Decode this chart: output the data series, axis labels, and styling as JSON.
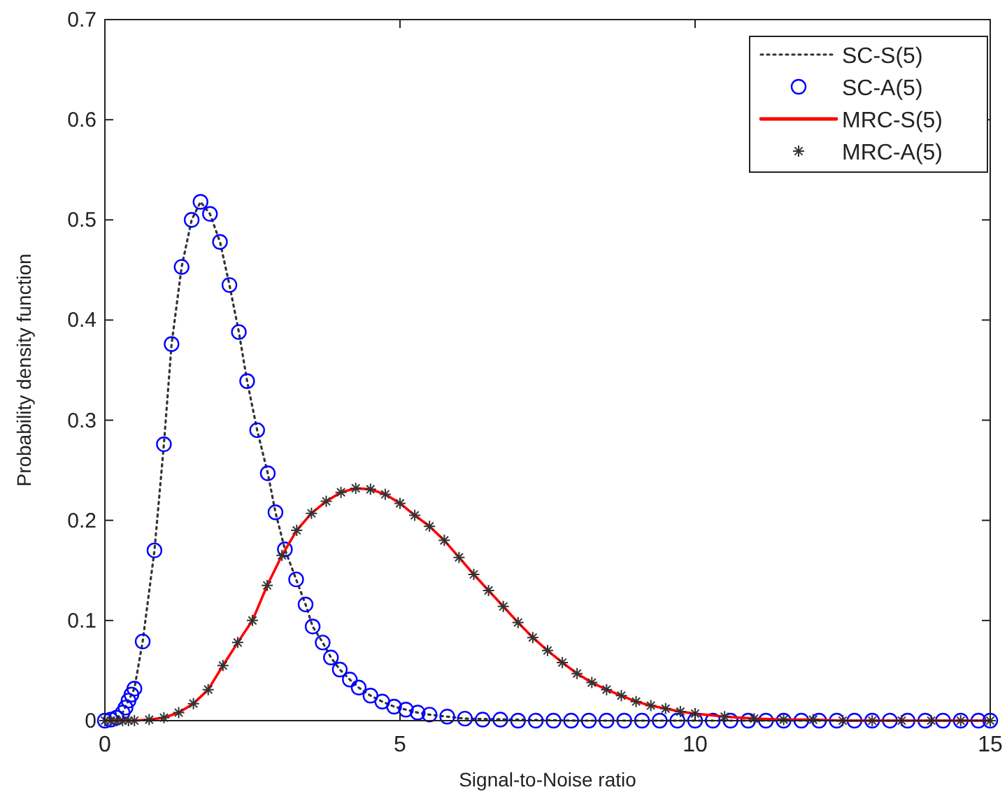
{
  "chart_data": {
    "type": "line",
    "xlabel": "Signal-to-Noise ratio",
    "ylabel": "Probability density function",
    "xlim": [
      0,
      15
    ],
    "ylim": [
      0,
      0.7
    ],
    "xticks": [
      0,
      5,
      10,
      15
    ],
    "yticks": [
      0,
      0.1,
      0.2,
      0.3,
      0.4,
      0.5,
      0.6,
      0.7
    ],
    "grid": false,
    "legend": "top right",
    "series": [
      {
        "name": "SC-S(5)",
        "marker": "none",
        "line_style": "dotted",
        "color": "#333333",
        "x": [
          0,
          0.1,
          0.2,
          0.3,
          0.4,
          0.5,
          0.64,
          0.84,
          1.0,
          1.13,
          1.3,
          1.47,
          1.62,
          1.78,
          1.95,
          2.11,
          2.27,
          2.41,
          2.58,
          2.76,
          2.89,
          3.05,
          3.24,
          3.4,
          3.52,
          3.69,
          3.83,
          3.98,
          4.15,
          4.3,
          4.5,
          4.7,
          4.9,
          5.1,
          5.3,
          5.5,
          5.8,
          6.1,
          7,
          8,
          9,
          10,
          11,
          12,
          13,
          14,
          15
        ],
        "values": [
          0,
          0.001,
          0.003,
          0.008,
          0.02,
          0.032,
          0.079,
          0.17,
          0.276,
          0.376,
          0.453,
          0.5,
          0.518,
          0.506,
          0.478,
          0.435,
          0.388,
          0.339,
          0.29,
          0.247,
          0.208,
          0.171,
          0.141,
          0.116,
          0.094,
          0.078,
          0.063,
          0.051,
          0.041,
          0.033,
          0.025,
          0.019,
          0.014,
          0.011,
          0.008,
          0.006,
          0.004,
          0.002,
          0.001,
          0,
          0,
          0,
          0,
          0,
          0,
          0,
          0
        ]
      },
      {
        "name": "SC-A(5)",
        "type": "scatter",
        "marker": "circle",
        "color": "#0000ff",
        "x": [
          0,
          0.1,
          0.2,
          0.3,
          0.35,
          0.4,
          0.45,
          0.5,
          0.64,
          0.84,
          1.0,
          1.13,
          1.3,
          1.47,
          1.62,
          1.78,
          1.95,
          2.11,
          2.27,
          2.41,
          2.58,
          2.76,
          2.89,
          3.05,
          3.24,
          3.4,
          3.52,
          3.69,
          3.83,
          3.98,
          4.15,
          4.3,
          4.5,
          4.7,
          4.9,
          5.1,
          5.3,
          5.5,
          5.8,
          6.1,
          6.4,
          6.7,
          7.0,
          7.3,
          7.6,
          7.9,
          8.2,
          8.5,
          8.8,
          9.1,
          9.4,
          9.7,
          10.0,
          10.3,
          10.6,
          10.9,
          11.2,
          11.5,
          11.8,
          12.1,
          12.4,
          12.7,
          13.0,
          13.3,
          13.6,
          13.9,
          14.2,
          14.5,
          14.8,
          15
        ],
        "values": [
          0,
          0.001,
          0.003,
          0.008,
          0.013,
          0.02,
          0.026,
          0.032,
          0.079,
          0.17,
          0.276,
          0.376,
          0.453,
          0.5,
          0.518,
          0.506,
          0.478,
          0.435,
          0.388,
          0.339,
          0.29,
          0.247,
          0.208,
          0.171,
          0.141,
          0.116,
          0.094,
          0.078,
          0.063,
          0.051,
          0.041,
          0.033,
          0.025,
          0.019,
          0.014,
          0.011,
          0.008,
          0.006,
          0.004,
          0.002,
          0.001,
          0.001,
          0,
          0,
          0,
          0,
          0,
          0,
          0,
          0,
          0,
          0,
          0,
          0,
          0,
          0,
          0,
          0,
          0,
          0,
          0,
          0,
          0,
          0,
          0,
          0,
          0,
          0,
          0,
          0
        ]
      },
      {
        "name": "MRC-S(5)",
        "marker": "none",
        "line_style": "solid",
        "color": "#ff0000",
        "x": [
          0,
          0.25,
          0.5,
          0.75,
          1,
          1.25,
          1.5,
          1.75,
          2,
          2.25,
          2.5,
          2.75,
          3,
          3.25,
          3.5,
          3.75,
          4,
          4.25,
          4.5,
          4.75,
          5,
          5.25,
          5.5,
          5.75,
          6,
          6.25,
          6.5,
          6.75,
          7,
          7.25,
          7.5,
          7.75,
          8,
          8.25,
          8.5,
          8.75,
          9,
          9.25,
          9.5,
          9.75,
          10,
          10.5,
          11,
          11.5,
          12,
          12.5,
          13,
          13.5,
          14,
          14.5,
          15
        ],
        "values": [
          0,
          0,
          0,
          0.001,
          0.003,
          0.008,
          0.017,
          0.031,
          0.055,
          0.078,
          0.1,
          0.135,
          0.165,
          0.19,
          0.207,
          0.219,
          0.228,
          0.232,
          0.231,
          0.226,
          0.217,
          0.205,
          0.194,
          0.18,
          0.163,
          0.146,
          0.13,
          0.114,
          0.098,
          0.083,
          0.07,
          0.058,
          0.047,
          0.038,
          0.031,
          0.025,
          0.019,
          0.015,
          0.012,
          0.009,
          0.007,
          0.004,
          0.002,
          0.001,
          0.001,
          0,
          0,
          0,
          0,
          0,
          0
        ]
      },
      {
        "name": "MRC-A(5)",
        "type": "scatter",
        "marker": "cross",
        "color": "#333333",
        "x": [
          0,
          0.1,
          0.2,
          0.3,
          0.4,
          0.5,
          0.75,
          1,
          1.25,
          1.5,
          1.75,
          2,
          2.25,
          2.5,
          2.75,
          3,
          3.25,
          3.5,
          3.75,
          4,
          4.25,
          4.5,
          4.75,
          5,
          5.25,
          5.5,
          5.75,
          6,
          6.25,
          6.5,
          6.75,
          7,
          7.25,
          7.5,
          7.75,
          8,
          8.25,
          8.5,
          8.75,
          9,
          9.25,
          9.5,
          9.75,
          10,
          10.5,
          11,
          11.5,
          12,
          12.5,
          13,
          13.5,
          14,
          14.5,
          15
        ],
        "values": [
          0,
          0,
          0,
          0,
          0,
          0,
          0.001,
          0.003,
          0.008,
          0.017,
          0.031,
          0.055,
          0.078,
          0.1,
          0.135,
          0.165,
          0.19,
          0.207,
          0.219,
          0.228,
          0.232,
          0.231,
          0.226,
          0.217,
          0.205,
          0.194,
          0.18,
          0.163,
          0.146,
          0.13,
          0.114,
          0.098,
          0.083,
          0.07,
          0.058,
          0.047,
          0.038,
          0.031,
          0.025,
          0.019,
          0.015,
          0.012,
          0.009,
          0.007,
          0.004,
          0.002,
          0.001,
          0.001,
          0,
          0,
          0,
          0,
          0,
          0
        ]
      }
    ]
  }
}
